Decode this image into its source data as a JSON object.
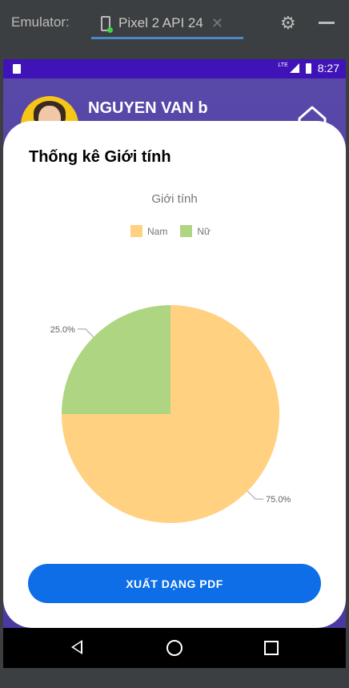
{
  "emulator": {
    "label": "Emulator:",
    "device_tab": "Pixel 2 API 24",
    "close_glyph": "✕",
    "settings_icon": "gear-icon",
    "minimize_icon": "minus-icon"
  },
  "statusbar": {
    "network": "LTE",
    "time": "8:27"
  },
  "profile": {
    "name": "NGUYEN VAN b",
    "avatar_icon": "avatar",
    "home_icon": "home-icon"
  },
  "card": {
    "title": "Thống kê Giới tính",
    "export_button": "XUẤT DẠNG PDF"
  },
  "chart_data": {
    "type": "pie",
    "title": "Giới tính",
    "legend_placement": "top-center",
    "slices": [
      {
        "name": "Nam",
        "value": 75.0,
        "label": "75.0%",
        "color": "#ffd180"
      },
      {
        "name": "Nữ",
        "value": 25.0,
        "label": "25.0%",
        "color": "#aed581"
      }
    ]
  },
  "navbar": {
    "back_icon": "back-icon",
    "home_icon": "circle-home-icon",
    "recents_icon": "recents-icon"
  }
}
